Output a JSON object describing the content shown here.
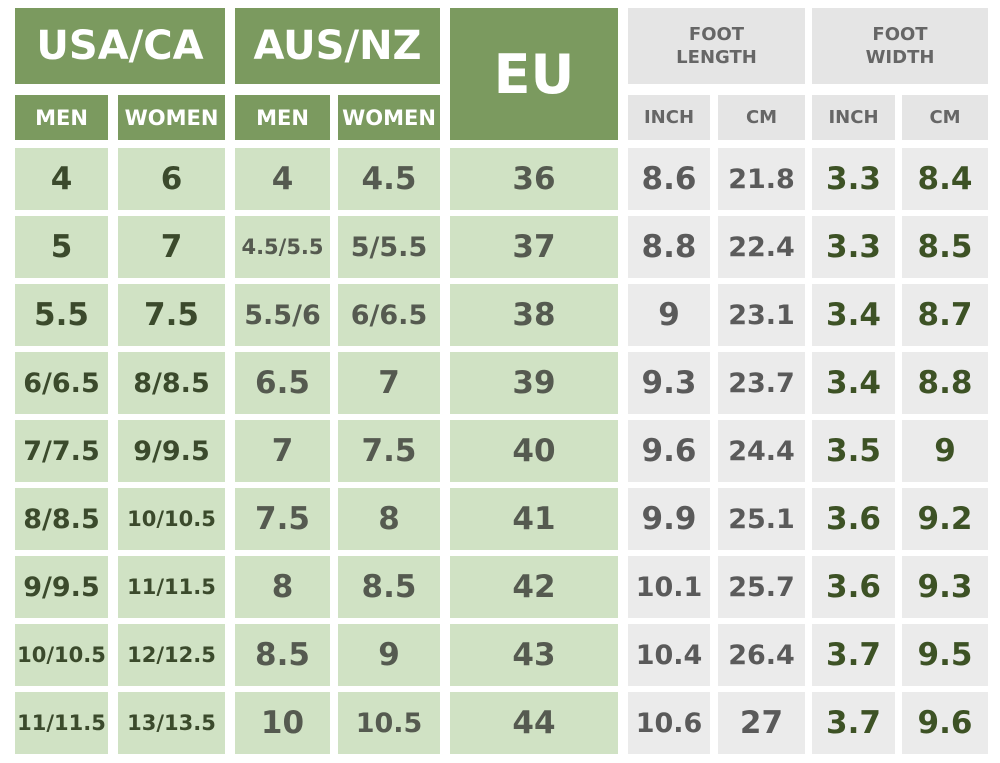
{
  "groups": [
    {
      "label": "USA/CA",
      "columns": [
        "MEN",
        "WOMEN"
      ]
    },
    {
      "label": "AUS/NZ",
      "columns": [
        "MEN",
        "WOMEN"
      ]
    },
    {
      "label": "EU"
    },
    {
      "label": "FOOT LENGTH",
      "columns": [
        "INCH",
        "CM"
      ]
    },
    {
      "label": "FOOT WIDTH",
      "columns": [
        "INCH",
        "CM"
      ]
    }
  ],
  "rows": [
    [
      "4",
      "6",
      "4",
      "4.5",
      "36",
      "8.6",
      "21.8",
      "3.3",
      "8.4"
    ],
    [
      "5",
      "7",
      "4.5/5.5",
      "5/5.5",
      "37",
      "8.8",
      "22.4",
      "3.3",
      "8.5"
    ],
    [
      "5.5",
      "7.5",
      "5.5/6",
      "6/6.5",
      "38",
      "9",
      "23.1",
      "3.4",
      "8.7"
    ],
    [
      "6/6.5",
      "8/8.5",
      "6.5",
      "7",
      "39",
      "9.3",
      "23.7",
      "3.4",
      "8.8"
    ],
    [
      "7/7.5",
      "9/9.5",
      "7",
      "7.5",
      "40",
      "9.6",
      "24.4",
      "3.5",
      "9"
    ],
    [
      "8/8.5",
      "10/10.5",
      "7.5",
      "8",
      "41",
      "9.9",
      "25.1",
      "3.6",
      "9.2"
    ],
    [
      "9/9.5",
      "11/11.5",
      "8",
      "8.5",
      "42",
      "10.1",
      "25.7",
      "3.6",
      "9.3"
    ],
    [
      "10/10.5",
      "12/12.5",
      "8.5",
      "9",
      "43",
      "10.4",
      "26.4",
      "3.7",
      "9.5"
    ],
    [
      "11/11.5",
      "13/13.5",
      "10",
      "10.5",
      "44",
      "10.6",
      "27",
      "3.7",
      "9.6"
    ]
  ]
}
